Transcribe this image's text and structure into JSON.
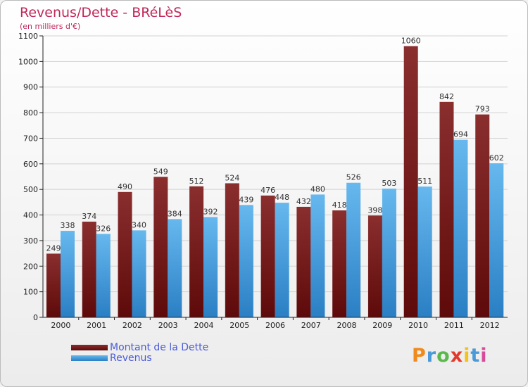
{
  "header": {
    "title": "Revenus/Dette - BRéLèS",
    "subtitle": "(en milliers d'€)"
  },
  "colors": {
    "title": "#c0285a",
    "debt_dark": "#5e0a0a",
    "debt_light": "#8a2e2e",
    "revenue_dark": "#2a7fc4",
    "revenue_light": "#66b8ee",
    "legend_text": "#4a5bd6"
  },
  "chart_data": {
    "type": "bar",
    "categories": [
      "2000",
      "2001",
      "2002",
      "2003",
      "2004",
      "2005",
      "2006",
      "2007",
      "2008",
      "2009",
      "2010",
      "2011",
      "2012"
    ],
    "series": [
      {
        "name": "Montant de la Dette",
        "values": [
          249,
          374,
          490,
          549,
          512,
          524,
          476,
          432,
          418,
          398,
          1060,
          842,
          793
        ]
      },
      {
        "name": "Revenus",
        "values": [
          338,
          326,
          340,
          384,
          392,
          439,
          448,
          480,
          526,
          503,
          511,
          694,
          602
        ]
      }
    ],
    "ylim": [
      0,
      1100
    ],
    "yticks": [
      0,
      100,
      200,
      300,
      400,
      500,
      600,
      700,
      800,
      900,
      1000,
      1100
    ],
    "grid": true,
    "legend": "bottom-left"
  },
  "legend": {
    "debt_label": "Montant de la Dette",
    "revenue_label": "Revenus"
  },
  "logo": {
    "text": "Proxiti",
    "letter_colors": [
      "#f08a1c",
      "#4a9ad8",
      "#5bb84a",
      "#e23a2a",
      "#f4c21a",
      "#4a9ad8",
      "#d94a9a"
    ]
  }
}
